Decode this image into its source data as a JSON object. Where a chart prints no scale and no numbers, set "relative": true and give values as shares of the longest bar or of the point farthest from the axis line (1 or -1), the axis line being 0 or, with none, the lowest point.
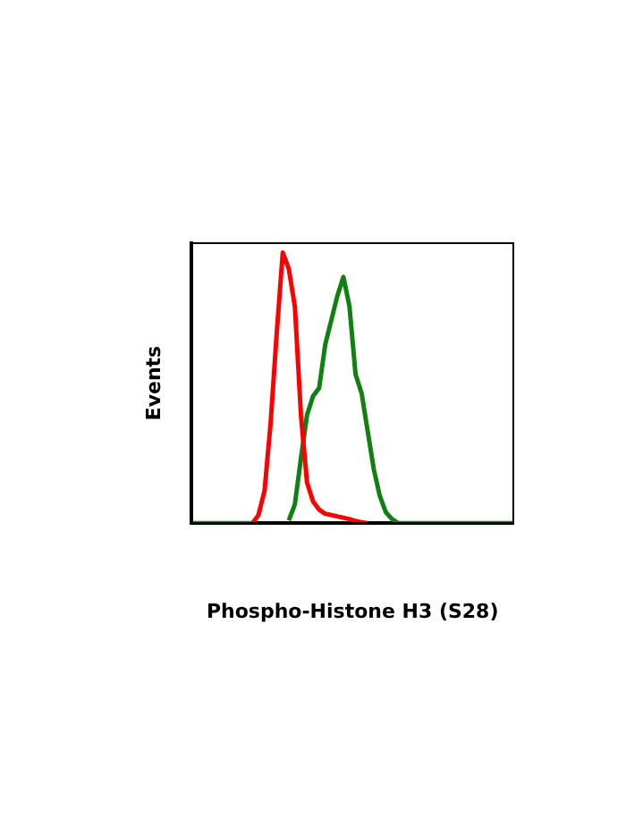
{
  "chart_data": {
    "type": "line",
    "xlabel": "Phospho-Histone H3 (S28)",
    "ylabel": "Events",
    "relative": true,
    "grid": false,
    "legend": false,
    "marker": "none",
    "line_style": "solid",
    "categories": [
      null,
      null,
      null,
      null,
      null,
      null,
      null,
      null,
      null,
      null,
      null,
      null,
      null,
      null,
      null,
      null,
      null,
      null,
      null,
      null,
      null,
      null,
      null,
      null,
      null,
      null,
      null,
      null,
      null,
      null,
      null,
      null,
      null,
      null,
      null,
      null,
      null,
      null,
      null,
      null,
      null,
      null,
      null,
      null,
      null,
      null,
      null,
      null,
      null,
      null,
      null,
      null,
      null,
      null
    ],
    "series": [
      {
        "color": "#ff0000",
        "values": [
          null,
          null,
          null,
          null,
          null,
          null,
          null,
          null,
          null,
          null,
          0,
          0.03,
          0.12,
          0.37,
          0.7,
          1,
          0.94,
          0.8,
          0.4,
          0.15,
          0.08,
          0.05,
          0.035,
          0.03,
          0.025,
          0.02,
          0.015,
          0.008,
          0.003,
          0,
          null,
          null,
          null,
          null,
          null,
          null,
          null,
          null,
          null,
          null,
          null,
          null,
          null,
          null,
          null,
          null,
          null,
          null,
          null,
          null,
          null,
          null,
          null,
          null
        ]
      },
      {
        "color": "#108010",
        "values": [
          0,
          0,
          0,
          0,
          0,
          0,
          0,
          0,
          0,
          0,
          0,
          null,
          null,
          null,
          null,
          null,
          0.01,
          0.07,
          0.24,
          0.4,
          0.47,
          0.5,
          0.66,
          0.75,
          0.84,
          0.91,
          0.8,
          0.55,
          0.48,
          0.34,
          0.2,
          0.1,
          0.04,
          0.015,
          0,
          0,
          0,
          0,
          0,
          0,
          0,
          0,
          0,
          0,
          0,
          0,
          0,
          0,
          0,
          0,
          0,
          0,
          0,
          0
        ]
      }
    ]
  }
}
